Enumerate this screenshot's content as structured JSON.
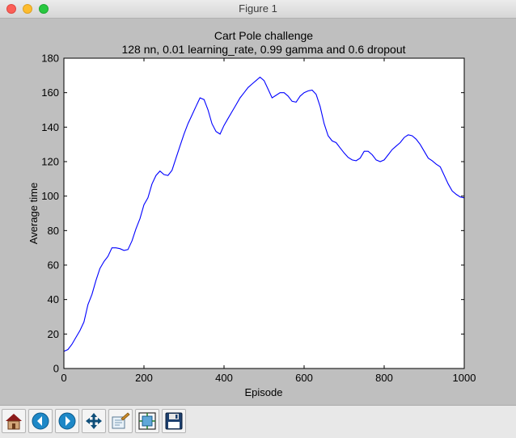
{
  "window": {
    "title": "Figure 1"
  },
  "chart_data": {
    "type": "line",
    "title": "Cart Pole challenge",
    "subtitle": "128 nn, 0.01 learning_rate, 0.99 gamma and 0.6 dropout",
    "xlabel": "Episode",
    "ylabel": "Average time",
    "xlim": [
      0,
      1000
    ],
    "ylim": [
      0,
      180
    ],
    "xticks": [
      0,
      200,
      400,
      600,
      800,
      1000
    ],
    "yticks": [
      0,
      20,
      40,
      60,
      80,
      100,
      120,
      140,
      160,
      180
    ],
    "grid": false,
    "series": [
      {
        "color": "#0000ff",
        "x": [
          0,
          10,
          20,
          30,
          40,
          50,
          60,
          70,
          80,
          90,
          100,
          110,
          120,
          130,
          140,
          150,
          160,
          170,
          180,
          190,
          200,
          210,
          220,
          230,
          240,
          250,
          260,
          270,
          280,
          290,
          300,
          310,
          320,
          330,
          340,
          350,
          360,
          370,
          380,
          390,
          400,
          410,
          420,
          430,
          440,
          450,
          460,
          470,
          480,
          490,
          500,
          510,
          520,
          530,
          540,
          550,
          560,
          570,
          580,
          590,
          600,
          610,
          620,
          630,
          640,
          650,
          660,
          670,
          680,
          690,
          700,
          710,
          720,
          730,
          740,
          750,
          760,
          770,
          780,
          790,
          800,
          810,
          820,
          830,
          840,
          850,
          860,
          870,
          880,
          890,
          900,
          910,
          920,
          930,
          940,
          950,
          960,
          970,
          980,
          990,
          1000
        ],
        "y": [
          10,
          11,
          14,
          18,
          22,
          27,
          37,
          43,
          51,
          58,
          62,
          65,
          70,
          70,
          69.5,
          68.5,
          69,
          74,
          81,
          87,
          95,
          99,
          107,
          112,
          114.5,
          112.5,
          112,
          115,
          122,
          129,
          136,
          142,
          147,
          152,
          157,
          156,
          150,
          142,
          137.5,
          136,
          141,
          145,
          149,
          153,
          157,
          160,
          163,
          165,
          167,
          169,
          167,
          162,
          157,
          158.5,
          160,
          160,
          158,
          155,
          154.5,
          158,
          160,
          161,
          161.5,
          159,
          152,
          142,
          135,
          132,
          131,
          128,
          125,
          122.5,
          121,
          120.5,
          122,
          126,
          126,
          124,
          121,
          120,
          121,
          124,
          127,
          129,
          131,
          134,
          135.5,
          135,
          133,
          130,
          126,
          122,
          120.5,
          118.5,
          117,
          112,
          107,
          103,
          101,
          99.5,
          99
        ]
      }
    ]
  },
  "toolbar": {
    "buttons": [
      {
        "icon": "home-icon"
      },
      {
        "icon": "back-arrow-icon"
      },
      {
        "icon": "forward-arrow-icon"
      },
      {
        "icon": "pan-move-icon"
      },
      {
        "icon": "zoom-rect-icon"
      },
      {
        "icon": "subplots-config-icon"
      },
      {
        "icon": "save-icon"
      }
    ]
  }
}
